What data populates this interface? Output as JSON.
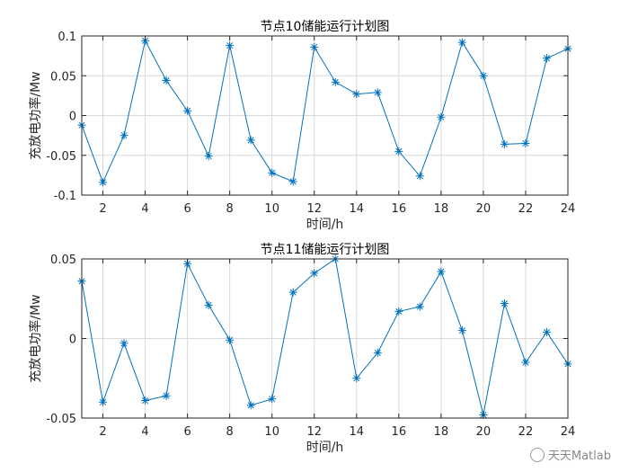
{
  "chart_data": [
    {
      "type": "line",
      "title": "节点10储能运行计划图",
      "xlabel": "时间/h",
      "ylabel": "充放电功率/Mw",
      "xlim": [
        1,
        24
      ],
      "ylim": [
        -0.1,
        0.1
      ],
      "xticks": [
        2,
        4,
        6,
        8,
        10,
        12,
        14,
        16,
        18,
        20,
        22,
        24
      ],
      "yticks": [
        -0.1,
        -0.05,
        0,
        0.05,
        0.1
      ],
      "ytick_labels": [
        "-0.1",
        "-0.05",
        "0",
        "0.05",
        "0.1"
      ],
      "grid": true,
      "color": "#0072BD",
      "marker": "asterisk",
      "x": [
        1,
        2,
        3,
        4,
        5,
        6,
        7,
        8,
        9,
        10,
        11,
        12,
        13,
        14,
        15,
        16,
        17,
        18,
        19,
        20,
        21,
        22,
        23,
        24
      ],
      "values": [
        -0.012,
        -0.084,
        -0.025,
        0.094,
        0.044,
        0.006,
        -0.051,
        0.088,
        -0.031,
        -0.072,
        -0.083,
        0.086,
        0.042,
        0.027,
        0.029,
        -0.045,
        -0.076,
        -0.002,
        0.092,
        0.05,
        -0.036,
        -0.035,
        0.072,
        0.084
      ]
    },
    {
      "type": "line",
      "title": "节点11储能运行计划图",
      "xlabel": "时间/h",
      "ylabel": "充放电功率/Mw",
      "xlim": [
        1,
        24
      ],
      "ylim": [
        -0.05,
        0.05
      ],
      "xticks": [
        2,
        4,
        6,
        8,
        10,
        12,
        14,
        16,
        18,
        20,
        22,
        24
      ],
      "yticks": [
        -0.05,
        0,
        0.05
      ],
      "ytick_labels": [
        "-0.05",
        "0",
        "0.05"
      ],
      "grid": true,
      "color": "#0072BD",
      "marker": "asterisk",
      "x": [
        1,
        2,
        3,
        4,
        5,
        6,
        7,
        8,
        9,
        10,
        11,
        12,
        13,
        14,
        15,
        16,
        17,
        18,
        19,
        20,
        21,
        22,
        23,
        24
      ],
      "values": [
        0.036,
        -0.04,
        -0.003,
        -0.039,
        -0.036,
        0.047,
        0.021,
        -0.001,
        -0.042,
        -0.038,
        0.029,
        0.041,
        0.05,
        -0.025,
        -0.009,
        0.017,
        0.02,
        0.042,
        0.005,
        -0.048,
        0.022,
        -0.015,
        0.004,
        -0.016
      ]
    }
  ],
  "watermark": {
    "text": "天天Matlab",
    "icon": "wechat-icon"
  }
}
